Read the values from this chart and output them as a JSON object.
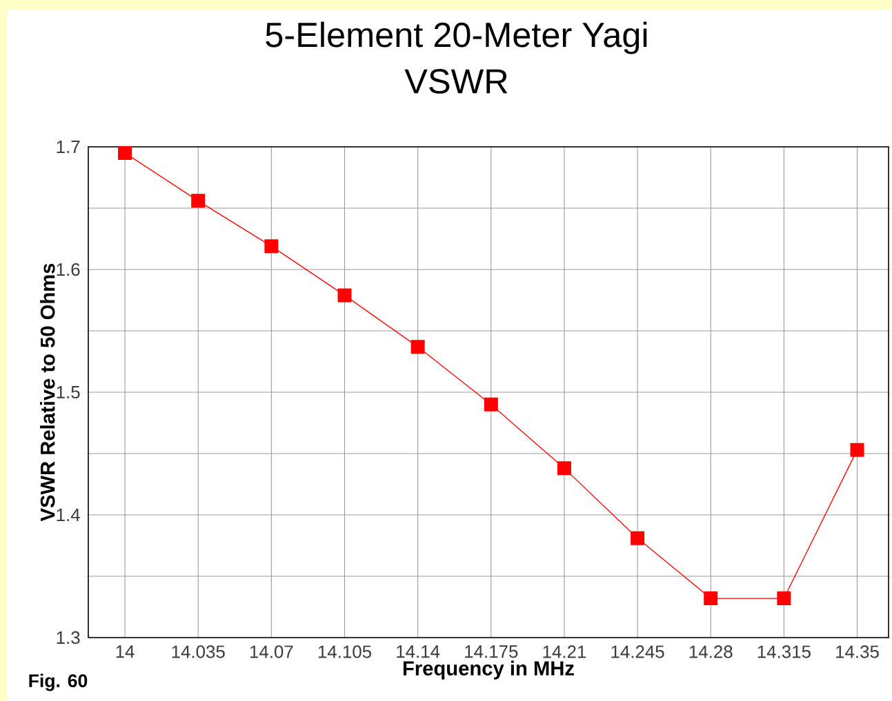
{
  "chart_data": {
    "type": "line",
    "title": "5-Element 20-Meter Yagi",
    "subtitle": "VSWR",
    "xlabel": "Frequency in MHz",
    "ylabel": "VSWR Relative to 50 Ohms",
    "annotations": [
      "Fig. 60"
    ],
    "x": [
      14,
      14.035,
      14.07,
      14.105,
      14.14,
      14.175,
      14.21,
      14.245,
      14.28,
      14.315,
      14.35
    ],
    "series": [
      {
        "color": "#ff0000",
        "values": [
          1.695,
          1.656,
          1.619,
          1.579,
          1.537,
          1.49,
          1.438,
          1.381,
          1.332,
          1.332,
          1.453
        ]
      }
    ],
    "xlim": [
      13.9825,
      14.365
    ],
    "ylim": [
      1.3,
      1.7
    ],
    "xticks": [
      14,
      14.035,
      14.07,
      14.105,
      14.14,
      14.175,
      14.21,
      14.245,
      14.28,
      14.315,
      14.35
    ],
    "yticks": [
      1.3,
      {
        "value": 1.35,
        "label": null
      },
      1.4,
      {
        "value": 1.45,
        "label": null
      },
      1.5,
      {
        "value": 1.55,
        "label": null
      },
      1.6,
      {
        "value": 1.65,
        "label": null
      },
      1.7
    ],
    "grid": true,
    "marker": "square",
    "line_style": "solid"
  }
}
